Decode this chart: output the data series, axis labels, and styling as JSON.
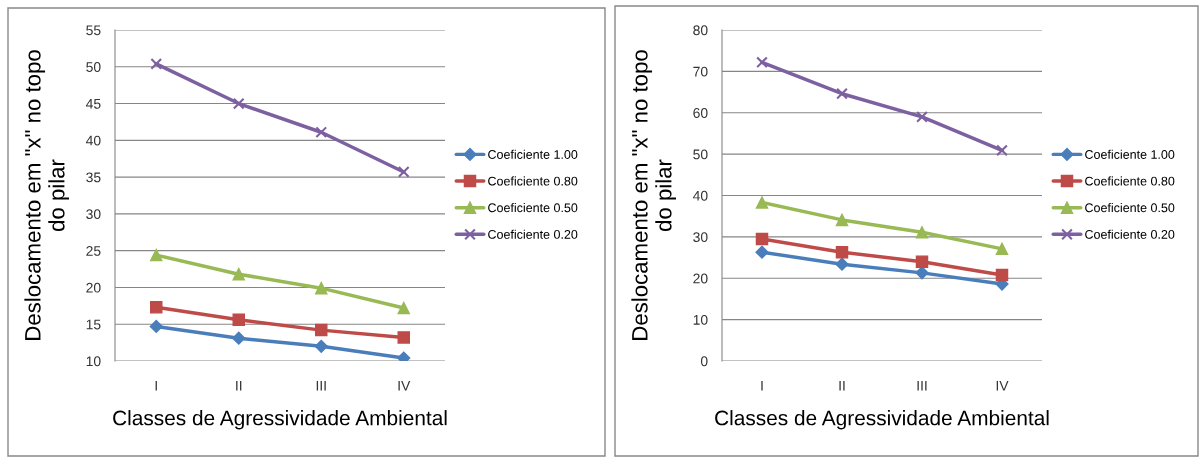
{
  "chart_data": [
    {
      "type": "line",
      "xlabel": "Classes de Agressividade Ambiental",
      "ylabel": "Deslocamento em \"x\" no topo\ndo pilar",
      "categories": [
        "I",
        "II",
        "III",
        "IV"
      ],
      "ylim": [
        10,
        55
      ],
      "yticks": [
        10,
        15,
        20,
        25,
        30,
        35,
        40,
        45,
        50,
        55
      ],
      "grid": "y",
      "legend": "right",
      "series": [
        {
          "name": "Coeficiente 1.00",
          "color": "#4a7ebb",
          "marker": "diamond",
          "values": [
            14.7,
            13.1,
            12.0,
            10.4
          ]
        },
        {
          "name": "Coeficiente 0.80",
          "color": "#be4b48",
          "marker": "square",
          "values": [
            17.3,
            15.6,
            14.2,
            13.2
          ]
        },
        {
          "name": "Coeficiente 0.50",
          "color": "#98b954",
          "marker": "triangle",
          "values": [
            24.4,
            21.8,
            19.9,
            17.2
          ]
        },
        {
          "name": "Coeficiente 0.20",
          "color": "#7d60a0",
          "marker": "cross",
          "values": [
            50.4,
            45.0,
            41.1,
            35.7
          ]
        }
      ]
    },
    {
      "type": "line",
      "xlabel": "Classes de Agressividade Ambiental",
      "ylabel": "Deslocamento em \"x\" no topo\ndo pilar",
      "categories": [
        "I",
        "II",
        "III",
        "IV"
      ],
      "ylim": [
        0,
        80
      ],
      "yticks": [
        0,
        10,
        20,
        30,
        40,
        50,
        60,
        70,
        80
      ],
      "grid": "y",
      "legend": "right",
      "series": [
        {
          "name": "Coeficiente 1.00",
          "color": "#4a7ebb",
          "marker": "diamond",
          "values": [
            26.3,
            23.4,
            21.3,
            18.6
          ]
        },
        {
          "name": "Coeficiente 0.80",
          "color": "#be4b48",
          "marker": "square",
          "values": [
            29.5,
            26.3,
            24.0,
            20.8
          ]
        },
        {
          "name": "Coeficiente 0.50",
          "color": "#98b954",
          "marker": "triangle",
          "values": [
            38.3,
            34.1,
            31.1,
            27.1
          ]
        },
        {
          "name": "Coeficiente 0.20",
          "color": "#7d60a0",
          "marker": "cross",
          "values": [
            72.2,
            64.6,
            59.0,
            50.9
          ]
        }
      ]
    }
  ]
}
